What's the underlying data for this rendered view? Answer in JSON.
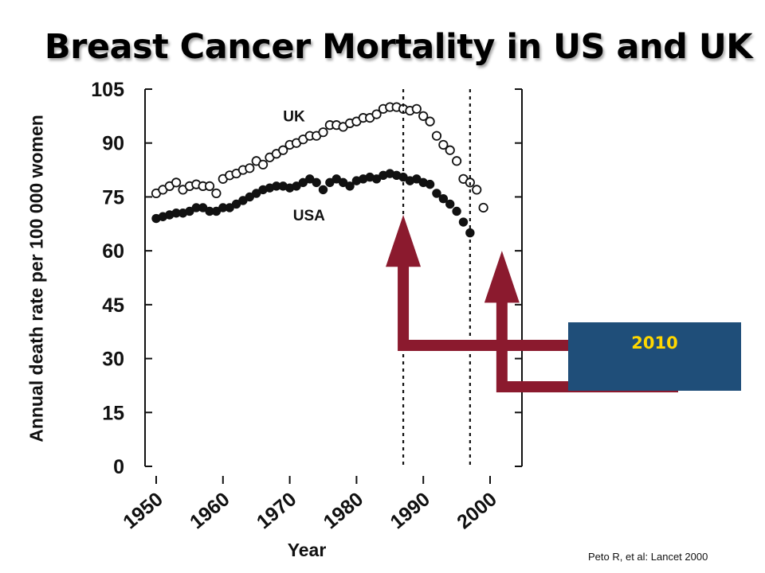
{
  "slide": {
    "title": "Breast Cancer Mortality in US and UK",
    "citation": "Peto R, et al: Lancet 2000"
  },
  "callout": {
    "label": "2010",
    "box_color": "#1f4e79",
    "label_color": "#ffd700",
    "arrow_color": "#8b1a2e"
  },
  "chart_data": {
    "type": "scatter",
    "xlabel": "Year",
    "ylabel": "Annual death rate per 100 000 women",
    "xlim": [
      1950,
      2001
    ],
    "ylim": [
      0,
      105
    ],
    "x_ticks": [
      "1950",
      "1960",
      "1970",
      "1980",
      "1990",
      "2000"
    ],
    "y_ticks": [
      "0",
      "15",
      "30",
      "45",
      "60",
      "75",
      "90",
      "105"
    ],
    "reference_lines_x": [
      1987,
      1997
    ],
    "grid": false,
    "series": [
      {
        "name": "UK",
        "marker": "open-circle",
        "x": [
          1950,
          1951,
          1952,
          1953,
          1954,
          1955,
          1956,
          1957,
          1958,
          1959,
          1960,
          1961,
          1962,
          1963,
          1964,
          1965,
          1966,
          1967,
          1968,
          1969,
          1970,
          1971,
          1972,
          1973,
          1974,
          1975,
          1976,
          1977,
          1978,
          1979,
          1980,
          1981,
          1982,
          1983,
          1984,
          1985,
          1986,
          1987,
          1988,
          1989,
          1990,
          1991,
          1992,
          1993,
          1994,
          1995,
          1996,
          1997,
          1998,
          1999
        ],
        "y": [
          76,
          77,
          78,
          79,
          77,
          78,
          78.5,
          78,
          78,
          76,
          80,
          81,
          81.5,
          82.5,
          83,
          85,
          84,
          86,
          87,
          88,
          89.5,
          90,
          91,
          92,
          92,
          93,
          95,
          95,
          94.5,
          95.5,
          96,
          97,
          97,
          98,
          99.5,
          100,
          100,
          99.5,
          99,
          99.5,
          97.5,
          96,
          92,
          89.5,
          88,
          85,
          80,
          79,
          77,
          72
        ]
      },
      {
        "name": "USA",
        "marker": "filled-circle",
        "x": [
          1950,
          1951,
          1952,
          1953,
          1954,
          1955,
          1956,
          1957,
          1958,
          1959,
          1960,
          1961,
          1962,
          1963,
          1964,
          1965,
          1966,
          1967,
          1968,
          1969,
          1970,
          1971,
          1972,
          1973,
          1974,
          1975,
          1976,
          1977,
          1978,
          1979,
          1980,
          1981,
          1982,
          1983,
          1984,
          1985,
          1986,
          1987,
          1988,
          1989,
          1990,
          1991,
          1992,
          1993,
          1994,
          1995,
          1996,
          1997
        ],
        "y": [
          69,
          69.5,
          70,
          70.5,
          70.5,
          71,
          72,
          72,
          71,
          71,
          72,
          72,
          73,
          74,
          75,
          76,
          77,
          77.5,
          78,
          78,
          77.5,
          78,
          79,
          80,
          79,
          77,
          79,
          80,
          79,
          78,
          79.5,
          80,
          80.5,
          80,
          81,
          81.5,
          81,
          80.5,
          79.5,
          80,
          79,
          78.5,
          76,
          74.5,
          73,
          71,
          68,
          65
        ]
      }
    ]
  }
}
